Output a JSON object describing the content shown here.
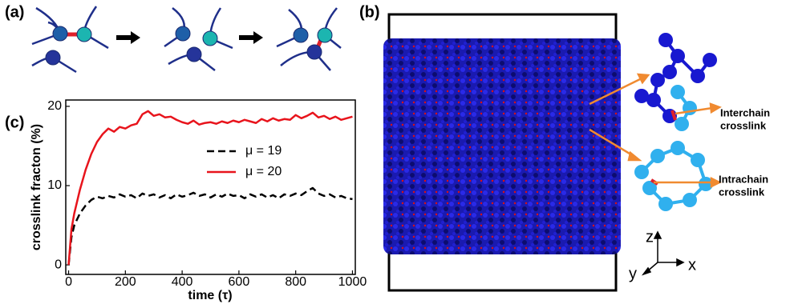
{
  "figure": {
    "panel_labels": [
      "(a)",
      "(b)",
      "(c)"
    ],
    "annotations": [
      [
        "Interchain",
        "crosslink"
      ],
      [
        "Intrachain",
        "crosslink"
      ]
    ],
    "axes_triad": [
      "z",
      "x",
      "y"
    ]
  },
  "chart_data": {
    "type": "line",
    "xlabel": "time (τ)",
    "ylabel": "crosslink fracton (%)",
    "x": [
      0,
      10,
      20,
      40,
      60,
      80,
      100,
      120,
      140,
      160,
      180,
      200,
      220,
      240,
      260,
      280,
      300,
      320,
      340,
      360,
      380,
      400,
      420,
      440,
      460,
      480,
      500,
      520,
      540,
      560,
      580,
      600,
      620,
      640,
      660,
      680,
      700,
      720,
      740,
      760,
      780,
      800,
      820,
      840,
      860,
      880,
      900,
      920,
      940,
      960,
      980,
      1000
    ],
    "series": [
      {
        "name": "μ = 19",
        "color": "#000000",
        "linestyle": "dashed",
        "values": [
          0,
          3.5,
          5.0,
          6.5,
          7.5,
          8.2,
          8.6,
          8.4,
          8.7,
          8.5,
          8.9,
          8.6,
          8.8,
          8.4,
          9.0,
          8.7,
          8.9,
          8.5,
          8.8,
          8.4,
          8.9,
          8.6,
          8.8,
          9.1,
          8.7,
          8.9,
          8.5,
          8.9,
          8.6,
          9.0,
          8.7,
          8.8,
          8.4,
          8.9,
          8.6,
          8.9,
          8.5,
          8.8,
          8.4,
          8.9,
          8.7,
          9.0,
          8.8,
          9.3,
          9.7,
          9.0,
          8.7,
          8.9,
          8.5,
          8.7,
          8.4,
          8.3
        ]
      },
      {
        "name": "μ = 20",
        "color": "#e8141c",
        "linestyle": "solid",
        "values": [
          0,
          4.5,
          6.5,
          9.5,
          12.0,
          14.0,
          15.5,
          16.5,
          17.2,
          16.8,
          17.4,
          17.2,
          17.6,
          17.8,
          19.0,
          19.4,
          18.8,
          19.0,
          18.6,
          18.7,
          18.3,
          18.0,
          17.8,
          18.2,
          17.7,
          17.9,
          18.0,
          17.8,
          18.1,
          17.9,
          18.2,
          18.0,
          18.3,
          18.1,
          17.9,
          18.4,
          18.1,
          18.5,
          18.2,
          18.4,
          18.3,
          18.9,
          18.5,
          18.8,
          19.2,
          18.6,
          18.8,
          18.4,
          18.7,
          18.3,
          18.5,
          18.7
        ]
      }
    ],
    "xlim": [
      -10,
      1010
    ],
    "ylim": [
      -1.2,
      20.8
    ],
    "xticks": [
      0,
      200,
      400,
      600,
      800,
      1000
    ],
    "yticks": [
      0,
      10,
      20
    ],
    "legend": "right"
  }
}
